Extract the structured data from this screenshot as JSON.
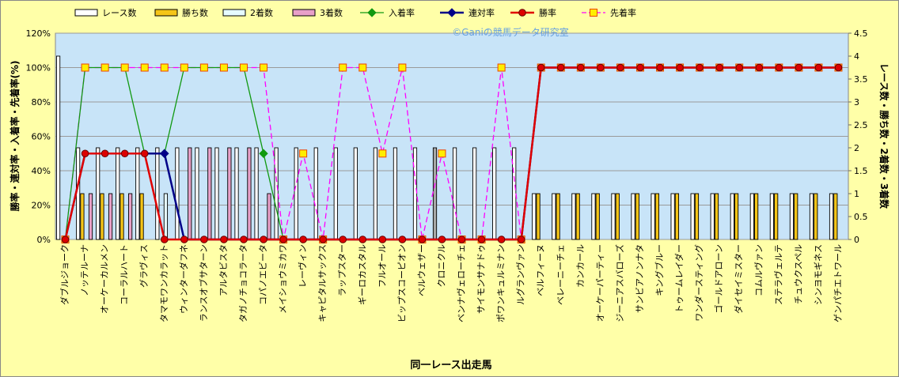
{
  "chart_data": {
    "type": "bar",
    "watermark": "©Ganiの競馬データ研究室",
    "xlabel": "同一レース出走馬",
    "ylabel_left": "勝率・連対率・入着率・先着率(%)",
    "ylabel_right": "レース数・勝ち数・2着数・3着数",
    "ylim_left": [
      0,
      120
    ],
    "ylim_right": [
      0,
      4.5
    ],
    "yticks_left": [
      "0%",
      "20%",
      "40%",
      "60%",
      "80%",
      "100%",
      "120%"
    ],
    "yticks_right": [
      "0",
      "0.5",
      "1",
      "1.5",
      "2",
      "2.5",
      "3",
      "3.5",
      "4",
      "4.5"
    ],
    "legend": [
      "レース数",
      "勝ち数",
      "2着数",
      "3着数",
      "入着率",
      "連対率",
      "勝率",
      "先着率"
    ],
    "colors": {
      "races": "#ffffff",
      "wins": "#f5c518",
      "second": "#e6fbff",
      "third": "#e8a0c8",
      "place_rate": "#119911",
      "top2_rate": "#000088",
      "win_rate": "#e00000",
      "ahead_rate": "#ff00ff",
      "plot_bg": "#c8e4f8"
    },
    "categories": [
      "ダブルジョーク",
      "ノッテルーナ",
      "オーケーカルメン",
      "コーラルハート",
      "グラヴィス",
      "タマモワンカラット",
      "ウィンターダフネ",
      "ランスオブサターン",
      "アルタビスタ",
      "タガノチョコラータ",
      "コパノエビータ",
      "メイショウミカワ",
      "レーヴィン",
      "キャピタルサックス",
      "ラップスター",
      "ギーロカスタル",
      "フルオール",
      "ビップスコーピオン",
      "ベルウェザー",
      "クロニクル",
      "ベンナヴェローチェ",
      "サイモンサナドゥ",
      "ポワンキュルミナン",
      "ルグランヴァン",
      "ベルフィーヌ",
      "ベレーニーチェ",
      "カンカール",
      "オーケーパーティー",
      "ジーニアスバローズ",
      "サンビアノンナタ",
      "キングブルー",
      "トゥームレイダー",
      "ワンダースティング",
      "ゴールドアローン",
      "ダイセイミスター",
      "コムルヴァン",
      "ステラヴェルテ",
      "チュウクスペル",
      "シンヨモギネス",
      "ゲンパチエトワール"
    ],
    "series": [
      {
        "name": "レース数",
        "axis": "right",
        "values": [
          4,
          2,
          2,
          2,
          2,
          2,
          2,
          2,
          2,
          2,
          2,
          2,
          2,
          2,
          2,
          2,
          2,
          2,
          2,
          2,
          2,
          2,
          2,
          2,
          1,
          1,
          1,
          1,
          1,
          1,
          1,
          1,
          1,
          1,
          1,
          1,
          1,
          1,
          1,
          1
        ]
      },
      {
        "name": "勝ち数",
        "axis": "right",
        "values": [
          0,
          1,
          1,
          1,
          1,
          0,
          0,
          0,
          0,
          0,
          0,
          0,
          0,
          0,
          0,
          0,
          0,
          0,
          0,
          0,
          0,
          0,
          0,
          0,
          1,
          1,
          1,
          1,
          1,
          1,
          1,
          1,
          1,
          1,
          1,
          1,
          1,
          1,
          1,
          1
        ]
      },
      {
        "name": "2着数",
        "axis": "right",
        "values": [
          0,
          0,
          0,
          0,
          0,
          1,
          0,
          0,
          0,
          0,
          0,
          0,
          0,
          0,
          0,
          0,
          0,
          0,
          0,
          0,
          0,
          0,
          0,
          0,
          0,
          0,
          0,
          0,
          0,
          0,
          0,
          0,
          0,
          0,
          0,
          0,
          0,
          0,
          0,
          0
        ]
      },
      {
        "name": "3着数",
        "axis": "right",
        "values": [
          0,
          1,
          1,
          1,
          0,
          0,
          2,
          2,
          2,
          2,
          1,
          0,
          0,
          0,
          0,
          0,
          0,
          0,
          0,
          0,
          0,
          0,
          0,
          0,
          0,
          0,
          0,
          0,
          0,
          0,
          0,
          0,
          0,
          0,
          0,
          0,
          0,
          0,
          0,
          0
        ]
      },
      {
        "name": "入着率",
        "axis": "left",
        "values": [
          0,
          100,
          100,
          100,
          50,
          50,
          100,
          100,
          100,
          100,
          50,
          0,
          0,
          0,
          0,
          0,
          0,
          0,
          0,
          0,
          0,
          0,
          0,
          0,
          100,
          100,
          100,
          100,
          100,
          100,
          100,
          100,
          100,
          100,
          100,
          100,
          100,
          100,
          100,
          100
        ]
      },
      {
        "name": "連対率",
        "axis": "left",
        "values": [
          0,
          50,
          50,
          50,
          50,
          50,
          0,
          0,
          0,
          0,
          0,
          0,
          0,
          0,
          0,
          0,
          0,
          0,
          0,
          0,
          0,
          0,
          0,
          0,
          100,
          100,
          100,
          100,
          100,
          100,
          100,
          100,
          100,
          100,
          100,
          100,
          100,
          100,
          100,
          100
        ]
      },
      {
        "name": "勝率",
        "axis": "left",
        "values": [
          0,
          50,
          50,
          50,
          50,
          0,
          0,
          0,
          0,
          0,
          0,
          0,
          0,
          0,
          0,
          0,
          0,
          0,
          0,
          0,
          0,
          0,
          0,
          0,
          100,
          100,
          100,
          100,
          100,
          100,
          100,
          100,
          100,
          100,
          100,
          100,
          100,
          100,
          100,
          100
        ]
      },
      {
        "name": "先着率",
        "axis": "left",
        "values": [
          0,
          100,
          100,
          100,
          100,
          100,
          100,
          100,
          100,
          100,
          100,
          0,
          50,
          0,
          100,
          100,
          50,
          100,
          0,
          50,
          0,
          0,
          100,
          0,
          100,
          100,
          100,
          100,
          100,
          100,
          100,
          100,
          100,
          100,
          100,
          100,
          100,
          100,
          100,
          100
        ]
      }
    ]
  }
}
